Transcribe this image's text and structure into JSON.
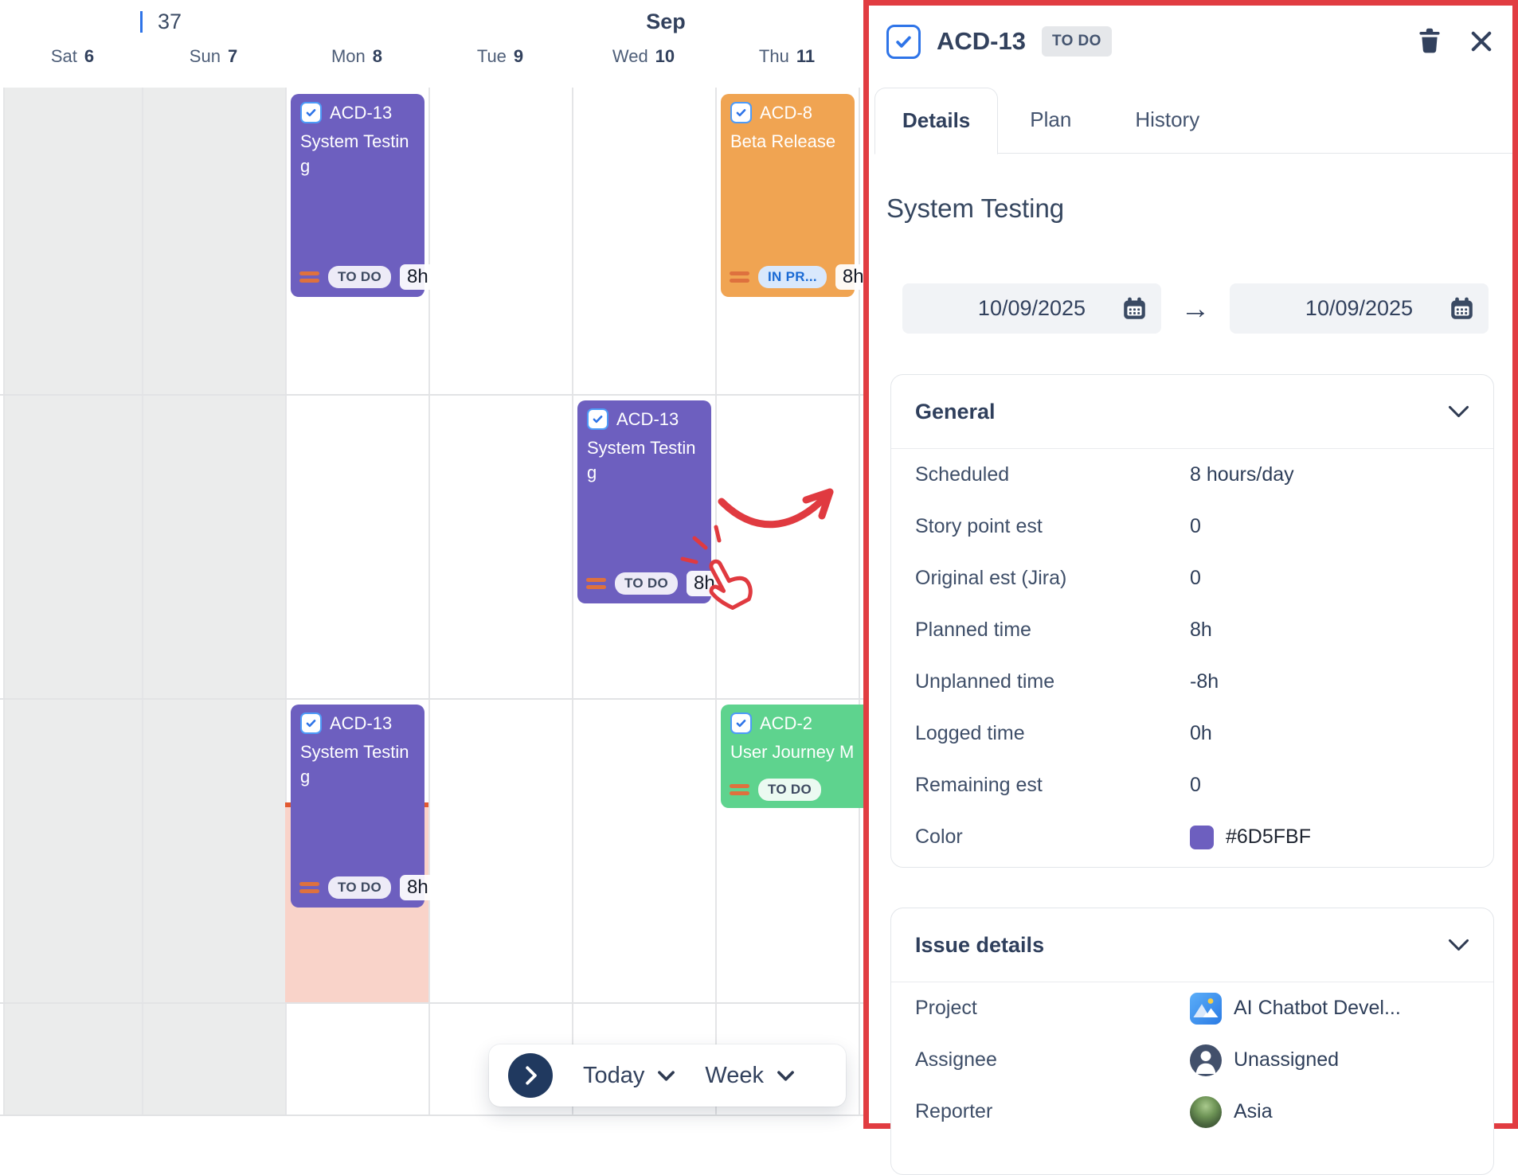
{
  "calendar": {
    "week_number": "37",
    "month_label": "Sep",
    "days": [
      {
        "name": "Sat",
        "num": "6"
      },
      {
        "name": "Sun",
        "num": "7"
      },
      {
        "name": "Mon",
        "num": "8"
      },
      {
        "name": "Tue",
        "num": "9"
      },
      {
        "name": "Wed",
        "num": "10"
      },
      {
        "name": "Thu",
        "num": "11"
      }
    ],
    "cards": [
      {
        "key": "ACD-13",
        "title": "System Testing",
        "status": "TO DO",
        "status_style": "todo",
        "hours": "8h",
        "color": "#6D5FBF",
        "col": 2,
        "row": 0,
        "size": "tall",
        "span": 1
      },
      {
        "key": "ACD-8",
        "title": "Beta Release",
        "status": "IN PR...",
        "status_style": "inprogress",
        "hours": "8h",
        "color": "#F0A452",
        "col": 5,
        "row": 0,
        "size": "tall",
        "span": 1
      },
      {
        "key": "ACD-13",
        "title": "System Testing",
        "status": "TO DO",
        "status_style": "todo",
        "hours": "8h",
        "color": "#6D5FBF",
        "col": 4,
        "row": 1,
        "size": "tall",
        "span": 1
      },
      {
        "key": "ACD-13",
        "title": "System Testing",
        "status": "TO DO",
        "status_style": "todo",
        "hours": "8h",
        "color": "#6D5FBF",
        "col": 2,
        "row": 2,
        "size": "tall",
        "span": 1
      },
      {
        "key": "ACD-2",
        "title": "User Journey M",
        "status": "TO DO",
        "status_style": "todo",
        "hours": null,
        "color": "#5ED38E",
        "col": 5,
        "row": 2,
        "size": "short",
        "span": 2
      }
    ],
    "toolbar": {
      "today_label": "Today",
      "view_label": "Week"
    }
  },
  "panel": {
    "issue_key": "ACD-13",
    "status_badge": "TO DO",
    "tabs": [
      {
        "label": "Details",
        "active": true
      },
      {
        "label": "Plan",
        "active": false
      },
      {
        "label": "History",
        "active": false
      }
    ],
    "title": "System Testing",
    "dates": {
      "start": "10/09/2025",
      "end": "10/09/2025"
    },
    "general": {
      "title": "General",
      "rows": [
        {
          "label": "Scheduled",
          "value": "8 hours/day"
        },
        {
          "label": "Story point est",
          "value": "0"
        },
        {
          "label": "Original est (Jira)",
          "value": "0"
        },
        {
          "label": "Planned time",
          "value": "8h"
        },
        {
          "label": "Unplanned time",
          "value": "-8h"
        },
        {
          "label": "Logged time",
          "value": "0h"
        },
        {
          "label": "Remaining est",
          "value": "0"
        },
        {
          "label": "Color",
          "value": "#6D5FBF",
          "swatch": "#6D5FBF"
        }
      ]
    },
    "issue_details": {
      "title": "Issue details",
      "rows": [
        {
          "label": "Project",
          "value": "AI Chatbot Devel...",
          "icon": "project"
        },
        {
          "label": "Assignee",
          "value": "Unassigned",
          "icon": "assignee"
        },
        {
          "label": "Reporter",
          "value": "Asia",
          "icon": "reporter"
        }
      ]
    }
  },
  "icons": {
    "arrow_right": "→"
  },
  "colors": {
    "task_purple": "#6D5FBF",
    "task_orange": "#F0A452",
    "task_green": "#5ED38E",
    "overload_bg": "#F9D3C9",
    "overload_line": "#E25A31",
    "annotation_red": "#E03A40",
    "weekend_bg": "#EBECEC",
    "highlight_border": "#E13C41"
  }
}
